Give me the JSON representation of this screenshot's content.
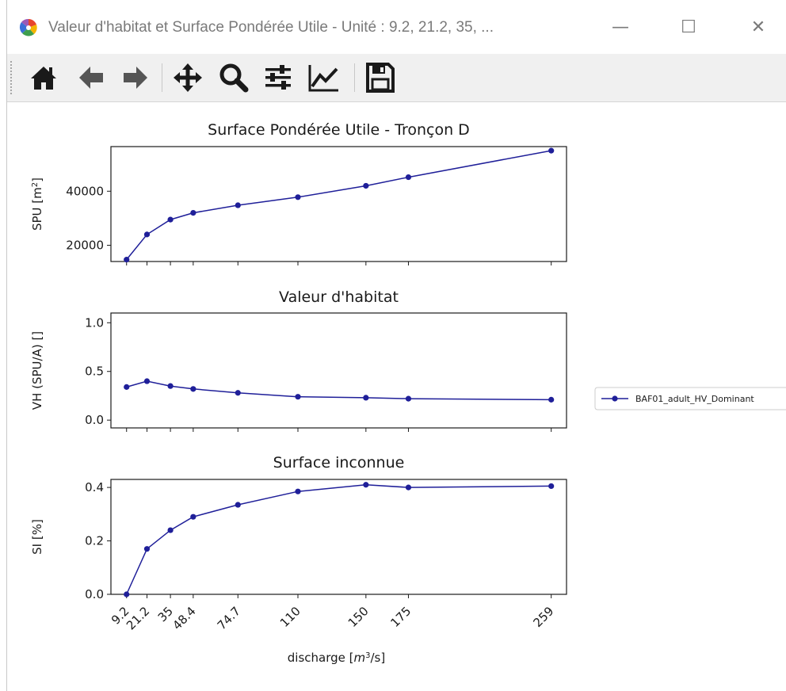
{
  "window": {
    "title": "Valeur d'habitat et Surface Pondérée Utile - Unité : 9.2, 21.2, 35, ...",
    "minimize_glyph": "—",
    "maximize_glyph": "☐",
    "close_glyph": "✕"
  },
  "toolbar": {
    "buttons": [
      "home-icon",
      "back-arrow-icon",
      "forward-arrow-icon",
      "pan-move-icon",
      "zoom-icon",
      "configure-subplots-icon",
      "edit-axis-icon",
      "save-icon"
    ]
  },
  "colors": {
    "series": "#1f1f99",
    "axis": "#1a1a1a",
    "icon": "#1a1a1a"
  },
  "chart_data": [
    {
      "type": "line",
      "title": "Surface Pondérée Utile - Tronçon D",
      "ylabel": "SPU [m²]",
      "ylabel_base": "SPU [m",
      "ylabel_sup": "2",
      "ylabel_end": "]",
      "xlabel": "",
      "x": [
        9.2,
        21.2,
        35,
        48.4,
        74.7,
        110,
        150,
        175,
        259
      ],
      "ylim": [
        14000,
        56500
      ],
      "yticks": [
        20000,
        40000
      ],
      "ytick_labels": [
        "20000",
        "40000"
      ],
      "series": [
        {
          "name": "BAF01_adult_HV_Dominant",
          "values": [
            14700,
            24000,
            29500,
            32000,
            34800,
            37800,
            42000,
            45200,
            55000
          ]
        }
      ]
    },
    {
      "type": "line",
      "title": "Valeur d'habitat",
      "ylabel": "VH (SPU/A) []",
      "xlabel": "",
      "x": [
        9.2,
        21.2,
        35,
        48.4,
        74.7,
        110,
        150,
        175,
        259
      ],
      "ylim": [
        -0.08,
        1.1
      ],
      "yticks": [
        0.0,
        0.5,
        1.0
      ],
      "ytick_labels": [
        "0.0",
        "0.5",
        "1.0"
      ],
      "series": [
        {
          "name": "BAF01_adult_HV_Dominant",
          "values": [
            0.34,
            0.4,
            0.35,
            0.32,
            0.28,
            0.24,
            0.23,
            0.22,
            0.21
          ]
        }
      ]
    },
    {
      "type": "line",
      "title": "Surface inconnue",
      "ylabel": "SI [%]",
      "xlabel": "discharge [m³/s]",
      "xlabel_base": "discharge [",
      "xlabel_m": "m",
      "xlabel_sup": "3",
      "xlabel_end": "/s]",
      "x": [
        9.2,
        21.2,
        35,
        48.4,
        74.7,
        110,
        150,
        175,
        259
      ],
      "xtick_labels": [
        "9.2",
        "21.2",
        "35",
        "48.4",
        "74.7",
        "110",
        "150",
        "175",
        "259"
      ],
      "ylim": [
        0.0,
        0.43
      ],
      "yticks": [
        0.0,
        0.2,
        0.4
      ],
      "ytick_labels": [
        "0.0",
        "0.2",
        "0.4"
      ],
      "series": [
        {
          "name": "BAF01_adult_HV_Dominant",
          "values": [
            0.0,
            0.17,
            0.24,
            0.29,
            0.335,
            0.385,
            0.41,
            0.4,
            0.405
          ]
        }
      ]
    }
  ],
  "legend": {
    "label": "BAF01_adult_HV_Dominant",
    "placement": "right"
  }
}
